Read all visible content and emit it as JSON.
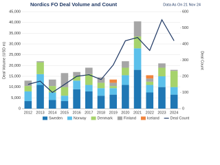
{
  "chart_data": {
    "type": "bar",
    "stacked": true,
    "title": "Nordics FO Deal Volume and Count",
    "subtitle": "Data As On 21 Nov 24",
    "y_label": "Deal Volume (USD m)",
    "y2_label": "Deal Count",
    "categories": [
      "2012",
      "2013",
      "2014",
      "2015",
      "2016",
      "2017",
      "2018",
      "2019",
      "2020",
      "2021",
      "2022",
      "2023",
      "2024"
    ],
    "series": [
      {
        "name": "Sweden",
        "color": "#1f77b4",
        "values": [
          3500,
          11000,
          4000,
          3500,
          9000,
          8000,
          6000,
          6500,
          11000,
          18000,
          7500,
          10000,
          6500
        ]
      },
      {
        "name": "Norway",
        "color": "#5bc0eb",
        "values": [
          4500,
          5000,
          3500,
          2500,
          4000,
          3000,
          3500,
          3000,
          4500,
          10000,
          3500,
          5000,
          3500
        ]
      },
      {
        "name": "Denmark",
        "color": "#a6d36b",
        "values": [
          2500,
          5500,
          3000,
          4000,
          2000,
          5000,
          2500,
          1000,
          3500,
          5500,
          1500,
          4000,
          7500
        ]
      },
      {
        "name": "Finland",
        "color": "#a6a6a6",
        "values": [
          2500,
          500,
          3000,
          6500,
          2000,
          3000,
          2500,
          1500,
          3000,
          7000,
          1500,
          2000,
          500
        ]
      },
      {
        "name": "Iceland",
        "color": "#f0843c",
        "values": [
          0,
          0,
          0,
          0,
          0,
          0,
          0,
          1500,
          0,
          0,
          1500,
          0,
          0
        ]
      },
      {
        "name": "Deal Count",
        "color": "#1f3864",
        "axis": "y2",
        "type": "line",
        "values": [
          150,
          170,
          100,
          150,
          200,
          210,
          180,
          270,
          420,
          440,
          360,
          550,
          420
        ]
      }
    ],
    "ylim": [
      0,
      45000
    ],
    "yticks": [
      0,
      {
        "value": 5000,
        "label": "5,000"
      },
      {
        "value": 10000,
        "label": "10,000"
      },
      {
        "value": 15000,
        "label": "15,000"
      },
      {
        "value": 20000,
        "label": "20,000"
      },
      {
        "value": 25000,
        "label": "25,000"
      },
      {
        "value": 30000,
        "label": "30,000"
      },
      {
        "value": 35000,
        "label": "35,000"
      },
      {
        "value": 40000,
        "label": "40,000"
      },
      {
        "value": 45000,
        "label": "45,000"
      }
    ],
    "y2lim": [
      0,
      600
    ],
    "y2ticks": [
      0,
      100,
      200,
      300,
      400,
      500,
      600
    ],
    "grid": true
  }
}
